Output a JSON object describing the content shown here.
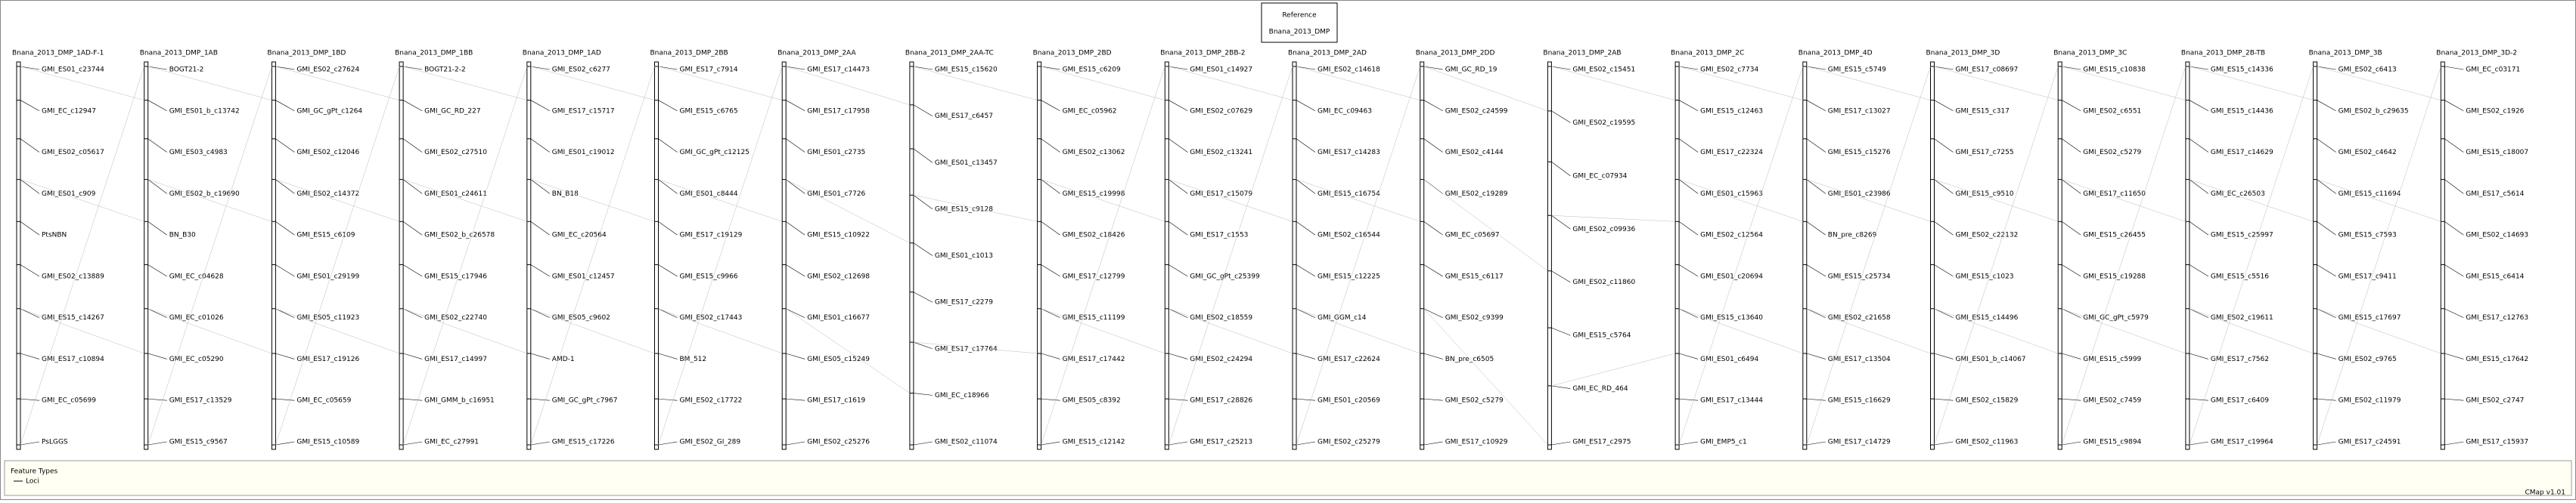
{
  "reference": {
    "title": "Reference",
    "name": "Bnana_2013_DMP"
  },
  "maps": [
    {
      "title": "Bnana_2013_DMP_1AD-F-1",
      "markers": [
        "GMI_ES01_c23744",
        "GMI_EC_c12947",
        "GMI_ES02_c05617",
        "GMI_ES01_c909",
        "PtsNBN",
        "GMI_ES02_c13889",
        "GMI_ES15_c14267",
        "GMI_ES17_c10894",
        "GMI_EC_c05699",
        "PsLGGS"
      ]
    },
    {
      "title": "Bnana_2013_DMP_1AB",
      "markers": [
        "BOGT21-2",
        "GMI_ES01_b_c13742",
        "GMI_ES03_c4983",
        "GMI_ES02_b_c19690",
        "BN_B30",
        "GMI_EC_c04628",
        "GMI_EC_c01026",
        "GMI_EC_c05290",
        "GMI_ES17_c13529",
        "GMI_ES15_c9567"
      ]
    },
    {
      "title": "Bnana_2013_DMP_1BD",
      "markers": [
        "GMI_ES02_c27624",
        "GMI_GC_gPt_c1264",
        "GMI_ES02_c12046",
        "GMI_ES02_c14372",
        "GMI_ES15_c6109",
        "GMI_ES01_c29199",
        "GMI_ES05_c11923",
        "GMI_ES17_c19126",
        "GMI_EC_c05659",
        "GMI_ES15_c10589"
      ]
    },
    {
      "title": "Bnana_2013_DMP_1BB",
      "markers": [
        "BOGT21-2-2",
        "GMI_GC_RD_227",
        "GMI_ES02_c27510",
        "GMI_ES01_c24611",
        "GMI_ES02_b_c26578",
        "GMI_ES15_c17946",
        "GMI_ES02_c22740",
        "GMI_ES17_c14997",
        "GMI_GMM_b_c16951",
        "GMI_EC_c27991"
      ]
    },
    {
      "title": "Bnana_2013_DMP_1AD",
      "markers": [
        "GMI_ES02_c6277",
        "GMI_ES17_c15717",
        "GMI_ES01_c19012",
        "BN_B18",
        "GMI_EC_c20564",
        "GMI_ES01_c12457",
        "GMI_ES05_c9602",
        "AMD-1",
        "GMI_GC_gPt_c7967",
        "GMI_ES15_c17226"
      ]
    },
    {
      "title": "Bnana_2013_DMP_2BB",
      "markers": [
        "GMI_ES17_c7914",
        "GMI_ES15_c6765",
        "GMI_GC_gPt_c12125",
        "GMI_ES01_c8444",
        "GMI_ES17_c19129",
        "GMI_ES15_c9966",
        "GMI_ES02_c17443",
        "BM_512",
        "GMI_ES02_c17722",
        "GMI_ES02_GI_289"
      ]
    },
    {
      "title": "Bnana_2013_DMP_2AA",
      "markers": [
        "GMI_ES17_c14473",
        "GMI_ES17_c17958",
        "GMI_ES01_c2735",
        "GMI_ES01_c7726",
        "GMI_ES15_c10922",
        "GMI_ES02_c12698",
        "GMI_ES01_c16677",
        "GMI_ES05_c15249",
        "GMI_ES17_c1619",
        "GMI_ES02_c25276"
      ]
    },
    {
      "title": "Bnana_2013_DMP_2AA-TC",
      "markers": [
        "GMI_ES15_c15620",
        "GMI_ES17_c6457",
        "GMI_ES01_c13457",
        "GMI_ES15_c9128",
        "GMI_ES01_c1013",
        "GMI_ES17_c2279",
        "GMI_ES17_c17764",
        "GMI_EC_c18966",
        "GMI_ES02_c11074"
      ]
    },
    {
      "title": "Bnana_2013_DMP_2BD",
      "markers": [
        "GMI_ES15_c6209",
        "GMI_EC_c05962",
        "GMI_ES02_c13062",
        "GMI_ES15_c19998",
        "GMI_ES02_c18426",
        "GMI_ES17_c12799",
        "GMI_ES15_c11199",
        "GMI_ES17_c17442",
        "GMI_ES05_c8392",
        "GMI_ES15_c12142"
      ]
    },
    {
      "title": "Bnana_2013_DMP_2BB-2",
      "markers": [
        "GMI_ES01_c14927",
        "GMI_ES02_c07629",
        "GMI_ES02_c13241",
        "GMI_ES17_c15079",
        "GMI_ES17_c1553",
        "GMI_GC_gPt_c25399",
        "GMI_ES02_c18559",
        "GMI_ES02_c24294",
        "GMI_ES17_c28826",
        "GMI_ES17_c25213"
      ]
    },
    {
      "title": "Bnana_2013_DMP_2AD",
      "markers": [
        "GMI_ES02_c14618",
        "GMI_EC_c09463",
        "GMI_ES17_c14283",
        "GMI_ES15_c16754",
        "GMI_ES02_c16544",
        "GMI_ES15_c12225",
        "GMI_GGM_c14",
        "GMI_ES17_c22624",
        "GMI_ES01_c20569",
        "GMI_ES02_c25279"
      ]
    },
    {
      "title": "Bnana_2013_DMP_2DD",
      "markers": [
        "GMI_GC_RD_19",
        "GMI_ES02_c24599",
        "GMI_ES02_c4144",
        "GMI_ES02_c19289",
        "GMI_EC_c05697",
        "GMI_ES15_c6117",
        "GMI_ES02_c9399",
        "BN_pre_c6505",
        "GMI_ES02_c5279",
        "GMI_ES17_c10929"
      ]
    },
    {
      "title": "Bnana_2013_DMP_2AB",
      "markers": [
        "GMI_ES02_c15451",
        "GMI_ES02_c19595",
        "GMI_EC_c07934",
        "GMI_ES02_c09936",
        "GMI_ES02_c11860",
        "GMI_ES15_c5764",
        "GMI_EC_RD_464",
        "GMI_ES17_c2975"
      ]
    },
    {
      "title": "Bnana_2013_DMP_2C",
      "markers": [
        "GMI_ES02_c7734",
        "GMI_ES15_c12463",
        "GMI_ES17_c22324",
        "GMI_ES01_c15963",
        "GMI_ES02_c12564",
        "GMI_ES01_c20694",
        "GMI_ES15_c13640",
        "GMI_ES01_c6494",
        "GMI_ES17_c13444",
        "GMI_EMP5_c1"
      ]
    },
    {
      "title": "Bnana_2013_DMP_4D",
      "markers": [
        "GMI_ES15_c5749",
        "GMI_ES17_c13027",
        "GMI_ES15_c15276",
        "GMI_ES01_c23986",
        "BN_pre_c8269",
        "GMI_ES15_c25734",
        "GMI_ES02_c21658",
        "GMI_ES17_c13504",
        "GMI_ES15_c16629",
        "GMI_ES17_c14729"
      ]
    },
    {
      "title": "Bnana_2013_DMP_3D",
      "markers": [
        "GMI_ES17_c08697",
        "GMI_ES15_c317",
        "GMI_ES17_c7255",
        "GMI_ES15_c9510",
        "GMI_ES02_c22132",
        "GMI_ES15_c1023",
        "GMI_ES15_c14496",
        "GMI_ES01_b_c14067",
        "GMI_ES02_c15829",
        "GMI_ES02_c11963"
      ]
    },
    {
      "title": "Bnana_2013_DMP_3C",
      "markers": [
        "GMI_ES15_c10838",
        "GMI_ES02_c6551",
        "GMI_ES02_c5279",
        "GMI_ES17_c11650",
        "GMI_ES15_c26455",
        "GMI_ES15_c19288",
        "GMI_GC_gPt_c5979",
        "GMI_ES15_c5999",
        "GMI_ES02_c7459",
        "GMI_ES15_c9894"
      ]
    },
    {
      "title": "Bnana_2013_DMP_2B-TB",
      "markers": [
        "GMI_ES15_c14336",
        "GMI_ES15_c14436",
        "GMI_ES17_c14629",
        "GMI_EC_c26503",
        "GMI_ES15_c25997",
        "GMI_ES15_c5516",
        "GMI_ES02_c19611",
        "GMI_ES17_c7562",
        "GMI_ES17_c6409",
        "GMI_ES17_c19964"
      ]
    },
    {
      "title": "Bnana_2013_DMP_3B",
      "markers": [
        "GMI_ES02_c6413",
        "GMI_ES02_b_c29635",
        "GMI_ES02_c4642",
        "GMI_ES15_c11694",
        "GMI_ES15_c7593",
        "GMI_ES17_c9411",
        "GMI_ES15_c17697",
        "GMI_ES02_c9765",
        "GMI_ES02_c11979",
        "GMI_ES17_c24591"
      ]
    },
    {
      "title": "Bnana_2013_DMP_3D-2",
      "markers": [
        "GMI_EC_c03171",
        "GMI_ES02_c1926",
        "GMI_ES15_c18007",
        "GMI_ES17_c5614",
        "GMI_ES02_c14693",
        "GMI_ES15_c6414",
        "GMI_ES17_c12763",
        "GMI_ES15_c17642",
        "GMI_ES02_c2747",
        "GMI_ES17_c15937"
      ]
    }
  ],
  "legend": {
    "title": "Feature Types",
    "item": "Loci"
  },
  "footer": "CMap v1.01"
}
